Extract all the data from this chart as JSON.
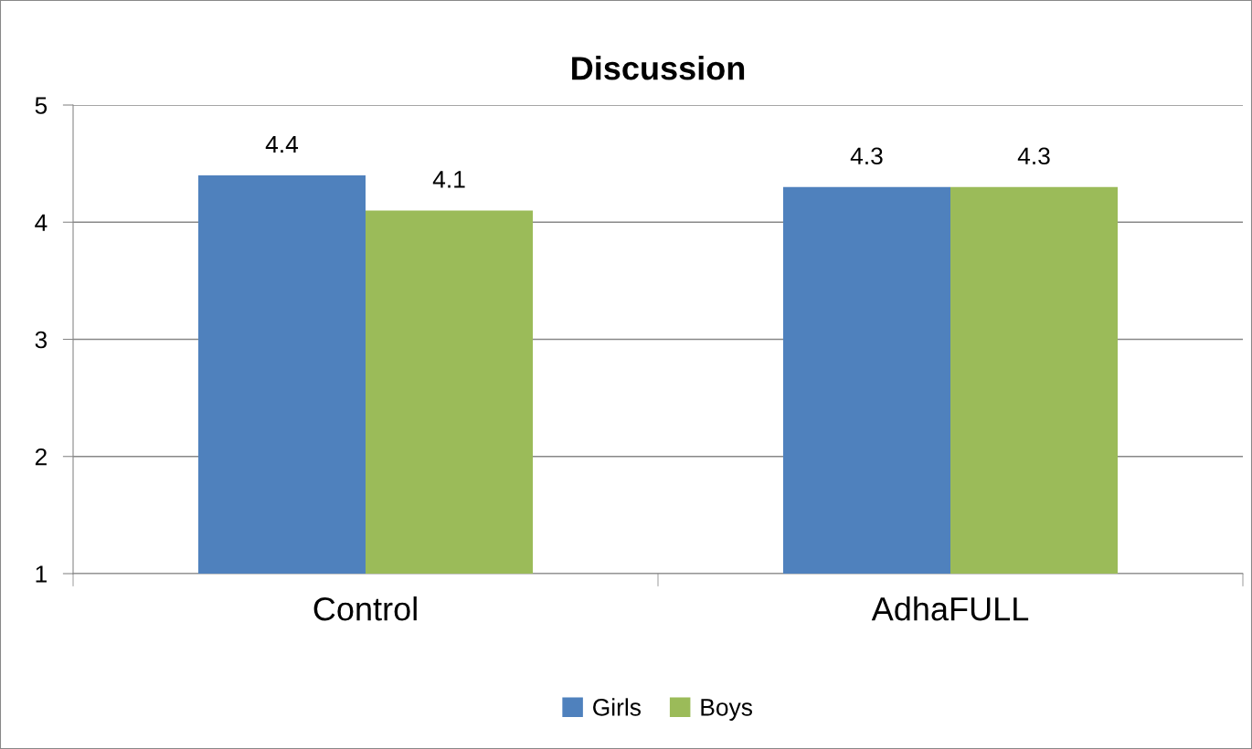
{
  "chart_data": {
    "type": "bar",
    "title": "Discussion",
    "categories": [
      "Control",
      "AdhaFULL"
    ],
    "series": [
      {
        "name": "Girls",
        "color": "#4f81bd",
        "values": [
          4.4,
          4.3
        ]
      },
      {
        "name": "Boys",
        "color": "#9bbb59",
        "values": [
          4.1,
          4.3
        ]
      }
    ],
    "ylim": [
      1,
      5
    ],
    "yticks": [
      1,
      2,
      3,
      4,
      5
    ],
    "grid": "y",
    "legend": "bottom",
    "data_labels": true
  }
}
